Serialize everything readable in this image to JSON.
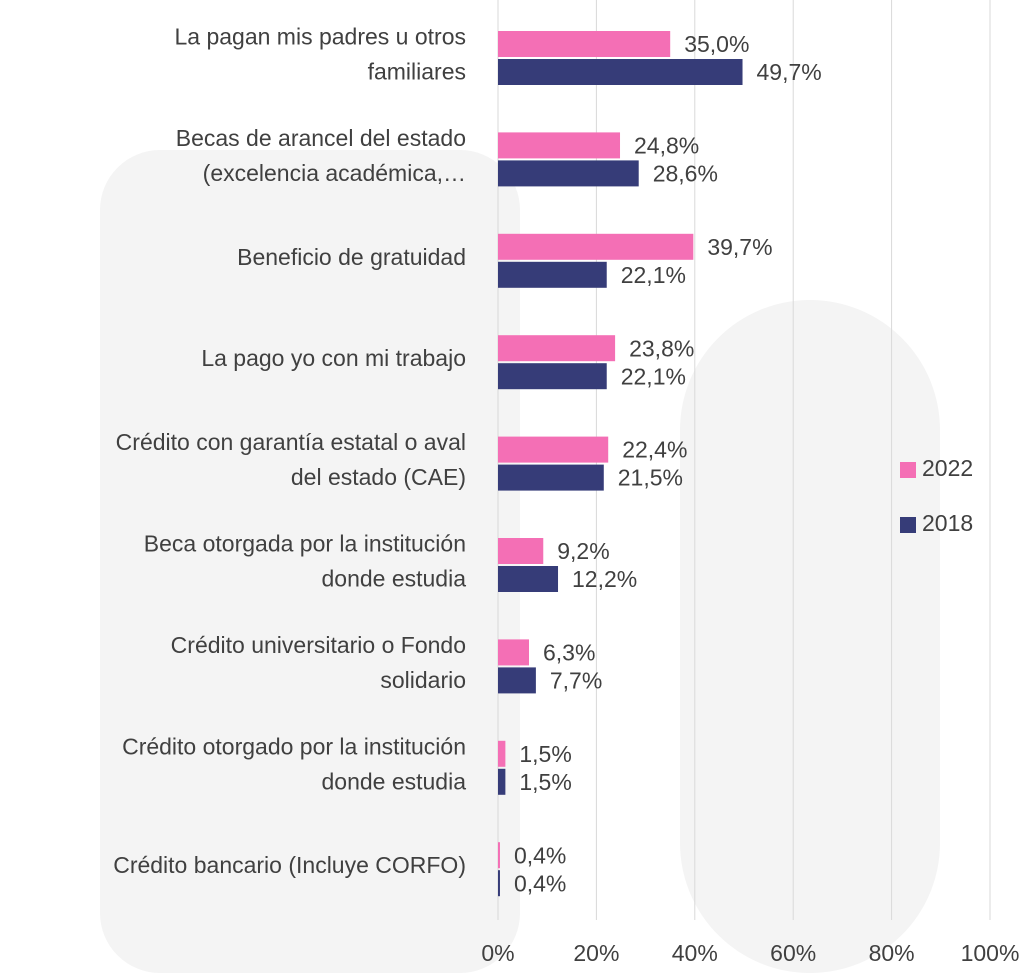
{
  "chart_data": {
    "type": "bar",
    "orientation": "horizontal",
    "categories": [
      "La pagan mis padres u otros\nfamiliares",
      "Becas de arancel del estado\n(excelencia académica,…",
      "Beneficio de gratuidad",
      "La pago yo con mi trabajo",
      "Crédito con garantía estatal o aval\ndel estado (CAE)",
      "Beca otorgada por la institución\ndonde estudia",
      "Crédito universitario o Fondo\nsolidario",
      "Crédito otorgado por la institución\ndonde estudia",
      "Crédito bancario (Incluye CORFO)"
    ],
    "series": [
      {
        "name": "2022",
        "color": "#f46fb5",
        "values": [
          35.0,
          24.8,
          39.7,
          23.8,
          22.4,
          9.2,
          6.3,
          1.5,
          0.4
        ],
        "value_labels": [
          "35,0%",
          "24,8%",
          "39,7%",
          "23,8%",
          "22,4%",
          "9,2%",
          "6,3%",
          "1,5%",
          "0,4%"
        ]
      },
      {
        "name": "2018",
        "color": "#363c78",
        "values": [
          49.7,
          28.6,
          22.1,
          22.1,
          21.5,
          12.2,
          7.7,
          1.5,
          0.4
        ],
        "value_labels": [
          "49,7%",
          "28,6%",
          "22,1%",
          "22,1%",
          "21,5%",
          "12,2%",
          "7,7%",
          "1,5%",
          "0,4%"
        ]
      }
    ],
    "xlim": [
      0,
      100
    ],
    "xticks": [
      {
        "value": 0,
        "label": "0%"
      },
      {
        "value": 20,
        "label": "20%"
      },
      {
        "value": 40,
        "label": "40%"
      },
      {
        "value": 60,
        "label": "60%"
      },
      {
        "value": 80,
        "label": "80%"
      },
      {
        "value": 100,
        "label": "100%"
      }
    ],
    "grid": true,
    "legend": "right"
  }
}
